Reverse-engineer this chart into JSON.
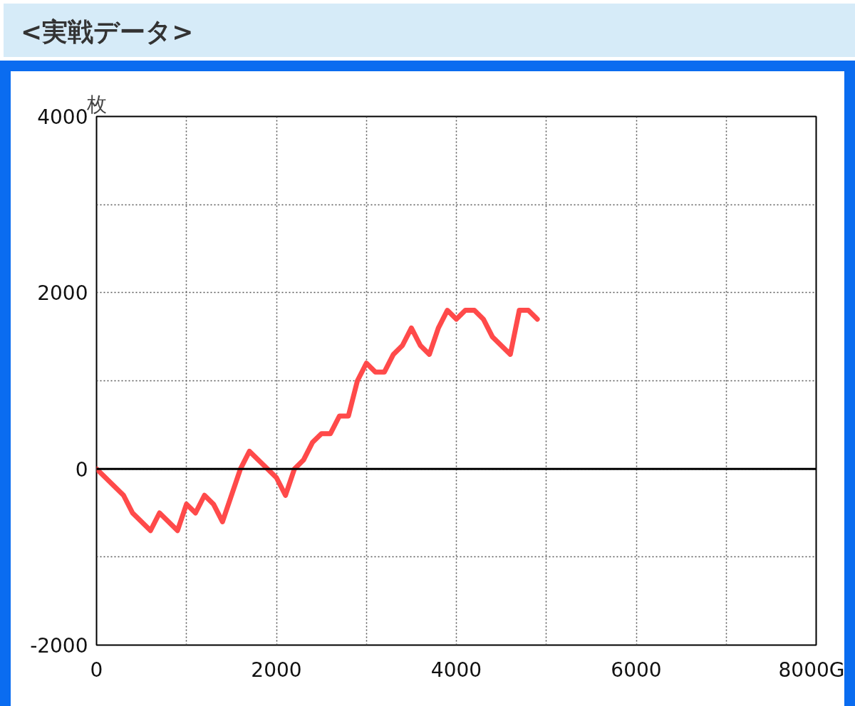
{
  "chart_data": {
    "type": "line",
    "title": "<実戦データ>",
    "ylabel": "枚",
    "x": [
      0,
      300,
      400,
      600,
      700,
      900,
      1000,
      1100,
      1200,
      1300,
      1400,
      1600,
      1700,
      2000,
      2100,
      2200,
      2300,
      2400,
      2500,
      2600,
      2700,
      2800,
      2900,
      3000,
      3100,
      3200,
      3300,
      3400,
      3500,
      3600,
      3700,
      3800,
      3900,
      4000,
      4100,
      4200,
      4300,
      4400,
      4600,
      4700,
      4800,
      4900
    ],
    "series": [
      {
        "color": "#ff4040",
        "values": [
          0,
          -300,
          -500,
          -700,
          -500,
          -700,
          -400,
          -500,
          -300,
          -400,
          -600,
          0,
          200,
          -100,
          -300,
          0,
          100,
          300,
          400,
          400,
          600,
          600,
          1000,
          1200,
          1100,
          1100,
          1300,
          1400,
          1600,
          1400,
          1300,
          1600,
          1800,
          1700,
          1800,
          1800,
          1700,
          1500,
          1300,
          1800,
          1800,
          1700
        ]
      }
    ],
    "xlim": [
      0,
      8000
    ],
    "ylim": [
      -2000,
      4000
    ],
    "xticks": [
      0,
      {
        "value": 1000,
        "label": null
      },
      2000,
      {
        "value": 3000,
        "label": null
      },
      4000,
      {
        "value": 5000,
        "label": null
      },
      6000,
      {
        "value": 7000,
        "label": null
      },
      {
        "value": 8000,
        "label": "8000G"
      }
    ],
    "yticks": [
      -2000,
      {
        "value": -1000,
        "label": null
      },
      0,
      {
        "value": 1000,
        "label": null
      },
      2000,
      {
        "value": 3000,
        "label": null
      },
      4000
    ],
    "ref_lines": [
      {
        "axis": "y",
        "value": 0,
        "color": "#000000",
        "line_style": "solid"
      }
    ],
    "grid": true,
    "marker": "none",
    "line_style": "solid"
  }
}
